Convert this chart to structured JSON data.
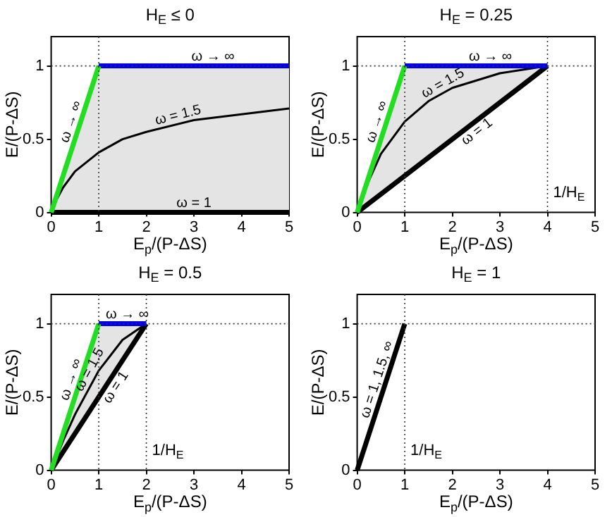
{
  "chart_data": [
    {
      "type": "line",
      "title": "H$_{E}$ ≤ 0",
      "xlabel": "E$_{p}$/(P-ΔS)",
      "ylabel": "E/(P-ΔS)",
      "xlim": [
        0,
        5
      ],
      "ylim": [
        0,
        1.2
      ],
      "xticks": [
        0,
        1,
        2,
        3,
        4,
        5
      ],
      "yticks": [
        0,
        0.5,
        1
      ],
      "grid": false,
      "legend": false,
      "series": [
        {
          "name": "ω → ∞",
          "color": "#22dd22",
          "x": [
            0,
            1
          ],
          "values": [
            0,
            1
          ]
        },
        {
          "name": "ω → ∞",
          "color": "#0000ee",
          "x": [
            1,
            5
          ],
          "values": [
            1,
            1
          ]
        },
        {
          "name": "ω = 1",
          "color": "#000000",
          "x": [
            0,
            5
          ],
          "values": [
            0,
            0
          ]
        },
        {
          "name": "ω = 1.5",
          "color": "#000000",
          "x": [
            0,
            0.1,
            0.25,
            0.5,
            1,
            1.5,
            2,
            3,
            4,
            5
          ],
          "values": [
            0,
            0.08,
            0.17,
            0.28,
            0.41,
            0.5,
            0.55,
            0.63,
            0.67,
            0.71
          ],
          "upper": [
            0,
            0.1,
            0.25,
            0.5,
            1,
            1,
            1,
            1,
            1,
            1
          ],
          "lower": [
            0,
            0,
            0,
            0,
            0,
            0,
            0,
            0,
            0,
            0
          ]
        }
      ],
      "ref_lines": [
        {
          "axis": "x",
          "value": 1,
          "line_style": "dotted"
        },
        {
          "axis": "y",
          "value": 1,
          "line_style": "dotted"
        }
      ]
    },
    {
      "type": "line",
      "title": "H$_{E}$ = 0.25",
      "xlabel": "E$_{p}$/(P-ΔS)",
      "ylabel": "E/(P-ΔS)",
      "xlim": [
        0,
        5
      ],
      "ylim": [
        0,
        1.2
      ],
      "xticks": [
        0,
        1,
        2,
        3,
        4,
        5
      ],
      "yticks": [
        0,
        0.5,
        1
      ],
      "grid": false,
      "legend": false,
      "series": [
        {
          "name": "ω → ∞",
          "color": "#22dd22",
          "x": [
            0,
            1
          ],
          "values": [
            0,
            1
          ]
        },
        {
          "name": "ω → ∞",
          "color": "#0000ee",
          "x": [
            1,
            4
          ],
          "values": [
            1,
            1
          ]
        },
        {
          "name": "ω = 1",
          "color": "#000000",
          "x": [
            0,
            4
          ],
          "values": [
            0,
            1
          ]
        },
        {
          "name": "ω = 1.5",
          "color": "#000000",
          "x": [
            0,
            0.25,
            0.5,
            1,
            1.5,
            2,
            3,
            4
          ],
          "values": [
            0,
            0.22,
            0.4,
            0.62,
            0.76,
            0.85,
            0.95,
            1
          ],
          "upper": [
            0,
            0.25,
            0.5,
            1,
            1,
            1,
            1,
            1
          ],
          "lower": [
            0,
            0.0625,
            0.125,
            0.25,
            0.375,
            0.5,
            0.75,
            1
          ]
        }
      ],
      "ref_lines": [
        {
          "axis": "x",
          "value": 1,
          "line_style": "dotted"
        },
        {
          "axis": "x",
          "value": 4,
          "label": "1/H$_{E}$",
          "line_style": "dotted"
        },
        {
          "axis": "y",
          "value": 1,
          "line_style": "dotted"
        }
      ]
    },
    {
      "type": "line",
      "title": "H$_{E}$ = 0.5",
      "xlabel": "E$_{p}$/(P-ΔS)",
      "ylabel": "E/(P-ΔS)",
      "xlim": [
        0,
        5
      ],
      "ylim": [
        0,
        1.2
      ],
      "xticks": [
        0,
        1,
        2,
        3,
        4,
        5
      ],
      "yticks": [
        0,
        0.5,
        1
      ],
      "grid": false,
      "legend": false,
      "series": [
        {
          "name": "ω → ∞",
          "color": "#22dd22",
          "x": [
            0,
            1
          ],
          "values": [
            0,
            1
          ]
        },
        {
          "name": "ω → ∞",
          "color": "#0000ee",
          "x": [
            1,
            2
          ],
          "values": [
            1,
            1
          ]
        },
        {
          "name": "ω = 1",
          "color": "#000000",
          "x": [
            0,
            2
          ],
          "values": [
            0,
            1
          ]
        },
        {
          "name": "ω = 1.5",
          "color": "#000000",
          "x": [
            0,
            0.25,
            0.5,
            1,
            1.5,
            2
          ],
          "values": [
            0,
            0.2,
            0.38,
            0.68,
            0.89,
            1
          ],
          "upper": [
            0,
            0.25,
            0.5,
            1,
            1,
            1
          ],
          "lower": [
            0,
            0.125,
            0.25,
            0.5,
            0.75,
            1
          ]
        }
      ],
      "ref_lines": [
        {
          "axis": "x",
          "value": 1,
          "line_style": "dotted"
        },
        {
          "axis": "x",
          "value": 2,
          "label": "1/H$_{E}$",
          "line_style": "dotted"
        },
        {
          "axis": "y",
          "value": 1,
          "line_style": "dotted"
        }
      ]
    },
    {
      "type": "line",
      "title": "H$_{E}$ = 1",
      "xlabel": "E$_{p}$/(P-ΔS)",
      "ylabel": "E/(P-ΔS)",
      "xlim": [
        0,
        5
      ],
      "ylim": [
        0,
        1.2
      ],
      "xticks": [
        0,
        1,
        2,
        3,
        4,
        5
      ],
      "yticks": [
        0,
        0.5,
        1
      ],
      "grid": false,
      "legend": false,
      "series": [
        {
          "name": "ω = 1, 1.5, ∞",
          "color": "#000000",
          "x": [
            0,
            1
          ],
          "values": [
            0,
            1
          ]
        }
      ],
      "ref_lines": [
        {
          "axis": "x",
          "value": 1,
          "label": "1/H$_{E}$",
          "line_style": "dotted"
        },
        {
          "axis": "y",
          "value": 1,
          "line_style": "dotted"
        }
      ]
    }
  ]
}
